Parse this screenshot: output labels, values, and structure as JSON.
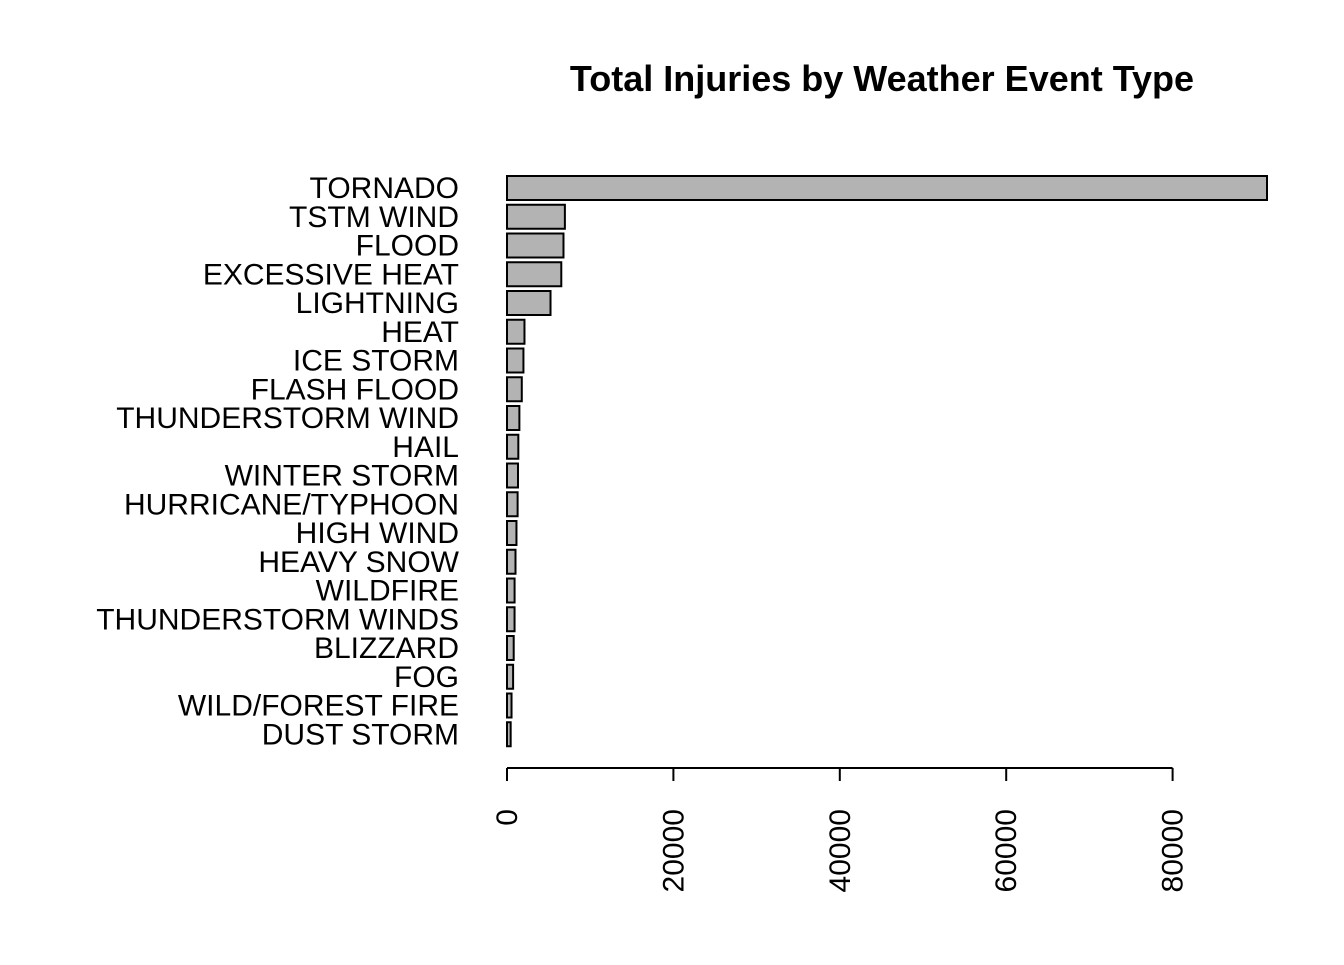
{
  "chart_data": {
    "type": "bar",
    "orientation": "horizontal",
    "title": "Total Injuries by Weather Event Type",
    "xlabel": "",
    "ylabel": "",
    "categories": [
      "TORNADO",
      "TSTM WIND",
      "FLOOD",
      "EXCESSIVE HEAT",
      "LIGHTNING",
      "HEAT",
      "ICE STORM",
      "FLASH FLOOD",
      "THUNDERSTORM WIND",
      "HAIL",
      "WINTER STORM",
      "HURRICANE/TYPHOON",
      "HIGH WIND",
      "HEAVY SNOW",
      "WILDFIRE",
      "THUNDERSTORM WINDS",
      "BLIZZARD",
      "FOG",
      "WILD/FOREST FIRE",
      "DUST STORM"
    ],
    "values": [
      91346,
      6957,
      6789,
      6525,
      5230,
      2100,
      1975,
      1777,
      1488,
      1361,
      1321,
      1275,
      1137,
      1021,
      911,
      908,
      805,
      734,
      545,
      440
    ],
    "xlim": [
      0,
      91346
    ],
    "xticks": [
      0,
      20000,
      40000,
      60000,
      80000
    ],
    "xtick_labels": [
      "0",
      "20000",
      "40000",
      "60000",
      "80000"
    ],
    "bar_color": "#b3b3b3",
    "edge_color": "#000000",
    "grid": false,
    "legend": "none"
  }
}
